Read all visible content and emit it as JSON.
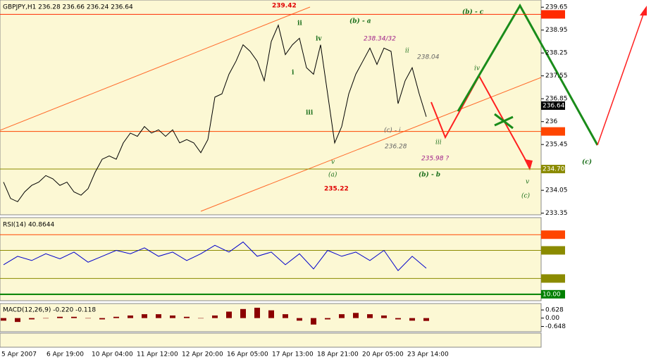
{
  "chart_data": [
    {
      "type": "line",
      "title": "GBPJPY,H1 236.28 236.66 236.24 236.64",
      "color": "#000000",
      "x_labels": [
        "5 Apr 2007",
        "6 Apr 19:00",
        "10 Apr 04:00",
        "11 Apr 12:00",
        "12 Apr 20:00",
        "16 Apr 05:00",
        "17 Apr 13:00",
        "18 Apr 21:00",
        "20 Apr 05:00",
        "23 Apr 14:00"
      ],
      "values": [
        234.3,
        233.8,
        233.7,
        234.0,
        234.2,
        234.3,
        234.5,
        234.4,
        234.2,
        234.3,
        234.0,
        233.9,
        234.1,
        234.6,
        235.0,
        235.1,
        235.0,
        235.5,
        235.8,
        235.7,
        236.0,
        235.8,
        235.9,
        235.7,
        235.9,
        235.5,
        235.6,
        235.5,
        235.2,
        235.6,
        236.9,
        237.0,
        237.6,
        238.0,
        238.5,
        238.3,
        238.0,
        237.4,
        238.6,
        239.1,
        238.2,
        238.5,
        238.7,
        237.8,
        237.6,
        238.5,
        237.0,
        235.5,
        236.0,
        237.0,
        237.6,
        238.0,
        238.4,
        237.9,
        238.4,
        238.3,
        236.7,
        237.4,
        237.8,
        237.0,
        236.3
      ],
      "ylim": [
        233.3,
        239.87
      ],
      "yticks": [
        239.65,
        238.95,
        238.25,
        237.55,
        236.85,
        {
          "value": 236.15,
          "label": "236"
        },
        235.45,
        234.05,
        233.35
      ],
      "levels": [
        {
          "value": 239.43,
          "color": "#ff2a00"
        },
        {
          "value": 235.85,
          "color": "#ff4500"
        },
        {
          "value": 234.7,
          "label": "234.70",
          "color": "#8b8b00"
        }
      ],
      "current": 236.64,
      "annotations": [
        "239.42",
        "ii",
        "iv",
        "i",
        "iii",
        "v",
        "(a)",
        "235.22",
        "(b) - a",
        "238.34/32",
        "ii",
        "238.04",
        "(c) - i",
        "236.28",
        "iii",
        "235.98 ?",
        "(b) - b",
        "iv",
        "(b) - c",
        "v",
        "(c)",
        "(c)"
      ]
    },
    {
      "type": "line",
      "title": "RSI(14) 40.8644",
      "color": "#0000cc",
      "values": [
        45,
        55,
        50,
        58,
        52,
        60,
        48,
        55,
        62,
        58,
        65,
        55,
        60,
        50,
        58,
        68,
        60,
        72,
        55,
        60,
        45,
        58,
        40,
        62,
        55,
        60,
        50,
        62,
        38,
        55,
        40.86
      ],
      "ylim": [
        4,
        100
      ],
      "levels": [
        {
          "value": 80.62,
          "color": "#ff4500"
        },
        {
          "value": 62.02,
          "color": "#8b8b00"
        },
        {
          "value": 28.68,
          "color": "#8b8b00"
        },
        {
          "value": 10,
          "label": "10.00",
          "color": "#008000"
        }
      ]
    },
    {
      "type": "bar",
      "title": "MACD(12,26,9) -0.220 -0.118",
      "color": "#8b0000",
      "values": [
        -0.2,
        -0.3,
        -0.1,
        0.0,
        0.1,
        0.1,
        0.0,
        -0.1,
        0.1,
        0.2,
        0.3,
        0.3,
        0.2,
        0.1,
        0.0,
        0.2,
        0.5,
        0.7,
        0.8,
        0.6,
        0.3,
        -0.2,
        -0.5,
        -0.1,
        0.3,
        0.4,
        0.3,
        0.2,
        -0.1,
        -0.2,
        -0.22
      ],
      "ylim": [
        -1,
        1.07
      ],
      "yticks": [
        0.628,
        {
          "value": 0,
          "label": "0.00"
        },
        -0.648
      ]
    }
  ]
}
